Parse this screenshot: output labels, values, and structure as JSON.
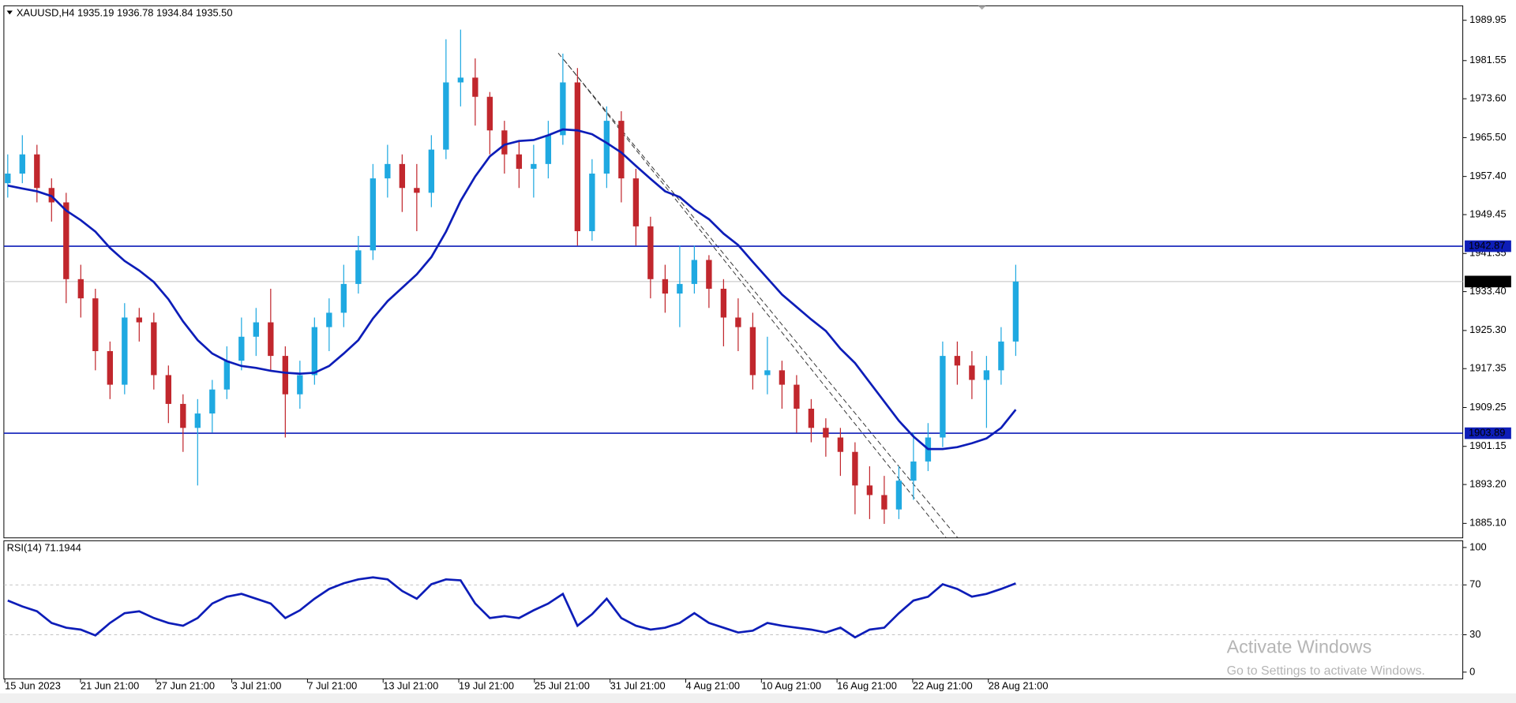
{
  "chart_data": {
    "type": "candlestick",
    "title": "XAUUSD,H4  1935.19 1936.78 1934.84 1935.50",
    "up_color": "#1fa9e1",
    "down_color": "#c1272d",
    "open": [
      1956,
      1958,
      1962,
      1955,
      1952,
      1936,
      1932,
      1921,
      1914,
      1928,
      1927,
      1916,
      1910,
      1905,
      1908,
      1913,
      1919,
      1924,
      1927,
      1920,
      1912,
      1916,
      1926,
      1929,
      1935,
      1942,
      1957,
      1960,
      1955,
      1954,
      1963,
      1977,
      1978,
      1974,
      1967,
      1962,
      1959,
      1960,
      1966,
      1977,
      1946,
      1958,
      1969,
      1957,
      1947,
      1936,
      1933,
      1935,
      1940,
      1934,
      1928,
      1926,
      1916,
      1917,
      1914,
      1909,
      1905,
      1903,
      1900,
      1893,
      1891,
      1888,
      1894,
      1898,
      1903,
      1920,
      1918,
      1915,
      1917,
      1923
    ],
    "high": [
      1962,
      1966,
      1964,
      1957,
      1954,
      1939,
      1934,
      1923,
      1931,
      1930,
      1929,
      1918,
      1912,
      1911,
      1915,
      1922,
      1928,
      1930,
      1934,
      1922,
      1919,
      1928,
      1932,
      1939,
      1945,
      1960,
      1964,
      1962,
      1960,
      1966,
      1986,
      1988,
      1982,
      1975,
      1969,
      1965,
      1964,
      1969,
      1983,
      1980,
      1961,
      1972,
      1971,
      1959,
      1949,
      1939,
      1943,
      1943,
      1941,
      1936,
      1932,
      1929,
      1924,
      1919,
      1916,
      1911,
      1907,
      1905,
      1902,
      1897,
      1895,
      1897,
      1904,
      1906,
      1923,
      1923,
      1921,
      1920,
      1926,
      1939
    ],
    "low": [
      1953,
      1956,
      1952,
      1948,
      1931,
      1928,
      1917,
      1911,
      1912,
      1923,
      1913,
      1906,
      1900,
      1893,
      1904,
      1911,
      1917,
      1920,
      1917,
      1903,
      1909,
      1914,
      1921,
      1926,
      1933,
      1940,
      1953,
      1950,
      1946,
      1951,
      1961,
      1972,
      1968,
      1962,
      1958,
      1955,
      1953,
      1957,
      1964,
      1943,
      1944,
      1955,
      1952,
      1943,
      1932,
      1929,
      1926,
      1933,
      1930,
      1922,
      1921,
      1913,
      1912,
      1909,
      1904,
      1902,
      1899,
      1895,
      1887,
      1886,
      1885,
      1886,
      1890,
      1896,
      1901,
      1914,
      1911,
      1905,
      1914,
      1920
    ],
    "close": [
      1958,
      1962,
      1955,
      1952,
      1936,
      1932,
      1921,
      1914,
      1928,
      1927,
      1916,
      1910,
      1905,
      1908,
      1913,
      1919,
      1924,
      1927,
      1920,
      1912,
      1916,
      1926,
      1929,
      1935,
      1942,
      1957,
      1960,
      1955,
      1954,
      1963,
      1977,
      1978,
      1974,
      1967,
      1962,
      1959,
      1960,
      1966,
      1977,
      1946,
      1958,
      1969,
      1957,
      1947,
      1936,
      1933,
      1935,
      1940,
      1934,
      1928,
      1926,
      1916,
      1917,
      1914,
      1909,
      1905,
      1903,
      1900,
      1893,
      1891,
      1888,
      1894,
      1898,
      1903,
      1920,
      1918,
      1915,
      1917,
      1923,
      1935.5
    ],
    "ma": {
      "color": "#0d1db8",
      "values": [
        1955.5,
        1954.9,
        1954.3,
        1953.3,
        1950.3,
        1948.3,
        1945.9,
        1942.5,
        1939.8,
        1937.8,
        1935.4,
        1931.8,
        1927.2,
        1923.3,
        1920.5,
        1918.9,
        1917.9,
        1917.5,
        1916.9,
        1916.5,
        1916.3,
        1916.5,
        1917.9,
        1920.5,
        1923.3,
        1927.8,
        1931.4,
        1934.2,
        1937.0,
        1940.6,
        1945.9,
        1952.3,
        1957.4,
        1961.6,
        1964.0,
        1964.8,
        1965.0,
        1966.0,
        1967.2,
        1967.0,
        1966.2,
        1964.4,
        1962.4,
        1959.6,
        1956.9,
        1954.3,
        1953.1,
        1950.5,
        1948.5,
        1945.5,
        1943.1,
        1939.6,
        1936.2,
        1932.8,
        1930.2,
        1927.6,
        1925.2,
        1921.5,
        1918.5,
        1914.5,
        1910.5,
        1906.5,
        1903.2,
        1900.6,
        1900.6,
        1901.0,
        1901.8,
        1902.8,
        1905.0,
        1908.8
      ]
    },
    "ylim": [
      1882.08,
      1992.97
    ],
    "yticks": [
      1989.95,
      1981.55,
      {
        "value": 1973.6,
        "label": "1973.60"
      },
      {
        "value": 1965.5,
        "label": "1965.50"
      },
      {
        "value": 1957.4,
        "label": "1957.40"
      },
      1949.45,
      1941.35,
      {
        "value": 1933.4,
        "label": "1933.40"
      },
      {
        "value": 1925.3,
        "label": "1925.30"
      },
      1917.35,
      1909.25,
      1901.15,
      {
        "value": 1893.2,
        "label": "1893.20"
      },
      {
        "value": 1885.1,
        "label": "1885.10"
      }
    ],
    "hlines": [
      1942.87,
      1903.89
    ],
    "hline_color": "#0d1db8",
    "price_line": {
      "value": 1935.5,
      "label": "1935.50"
    },
    "rsi": {
      "label": "RSI(14) 71.1944",
      "color": "#0d1db8",
      "values": [
        57.4,
        52.7,
        48.8,
        39.5,
        35.7,
        34.1,
        29.5,
        39.5,
        47.3,
        48.8,
        43.4,
        39.5,
        37.2,
        43.4,
        55.0,
        60.5,
        62.8,
        58.9,
        55.0,
        43.4,
        49.6,
        58.9,
        66.7,
        71.3,
        74.4,
        76.0,
        74.4,
        65.1,
        58.9,
        70.5,
        74.4,
        73.6,
        55.0,
        43.4,
        45.0,
        43.4,
        49.6,
        55.0,
        62.8,
        37.2,
        46.5,
        58.9,
        43.4,
        37.2,
        34.1,
        35.7,
        39.5,
        47.3,
        39.5,
        35.7,
        31.8,
        33.3,
        39.5,
        37.2,
        35.7,
        34.1,
        31.8,
        35.7,
        27.9,
        34.1,
        35.7,
        47.3,
        57.4,
        60.5,
        70.5,
        66.7,
        60.5,
        62.8,
        66.7,
        71.1944
      ],
      "ylim": [
        -5.4,
        105.4
      ],
      "yticks": [
        100,
        70,
        30,
        0
      ],
      "levels": [
        70,
        30
      ]
    },
    "time_labels": [
      "15 Jun 2023",
      "21 Jun 21:00",
      "27 Jun 21:00",
      "3 Jul 21:00",
      "7 Jul 21:00",
      "13 Jul 21:00",
      "19 Jul 21:00",
      "25 Jul 21:00",
      "31 Jul 21:00",
      "4 Aug 21:00",
      "10 Aug 21:00",
      "16 Aug 21:00",
      "22 Aug 21:00",
      "28 Aug 21:00"
    ]
  },
  "watermark": {
    "title": "Activate Windows",
    "subtitle": "Go to Settings to activate Windows."
  }
}
